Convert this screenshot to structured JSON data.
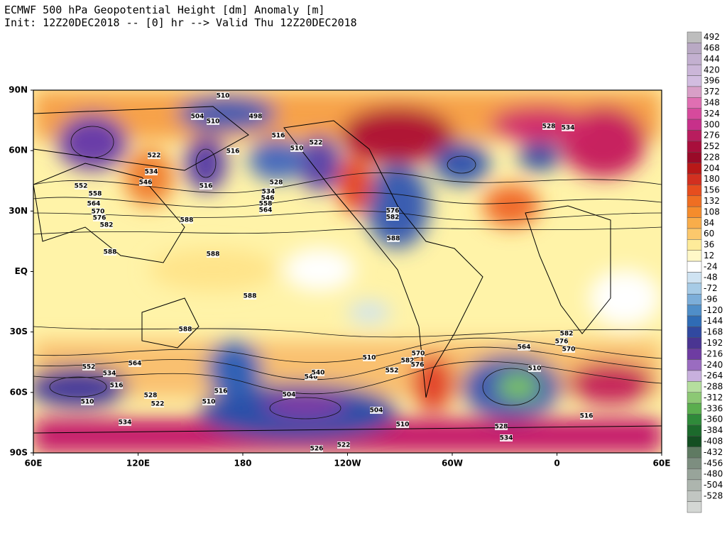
{
  "header": {
    "title": "ECMWF 500 hPa Geopotential Height [dm] Anomaly [m]",
    "subtitle": "Init: 12Z20DEC2018 -- [0] hr --> Valid Thu 12Z20DEC2018"
  },
  "map": {
    "lon_labels": [
      "60E",
      "120E",
      "180",
      "120W",
      "60W",
      "0",
      "60E"
    ],
    "lat_labels": [
      "90N",
      "60N",
      "30N",
      "EQ",
      "30S",
      "60S",
      "90S"
    ],
    "contour_labels": [
      510,
      504,
      498,
      510,
      516,
      516,
      522,
      534,
      546,
      552,
      558,
      564,
      570,
      576,
      582,
      588,
      588,
      588,
      588,
      588,
      510,
      522,
      528,
      516,
      534,
      546,
      558,
      564,
      576,
      582,
      588,
      582,
      576,
      570,
      564,
      552,
      534,
      516,
      510,
      528,
      522,
      504,
      510,
      516,
      504,
      510,
      534,
      526,
      522,
      528,
      534,
      516,
      510,
      564,
      552,
      510,
      546,
      540,
      534,
      528,
      582,
      576,
      570
    ],
    "legend": {
      "labels": [
        492,
        468,
        444,
        420,
        396,
        372,
        348,
        324,
        300,
        276,
        252,
        228,
        204,
        180,
        156,
        132,
        108,
        84,
        60,
        36,
        12,
        -24,
        -48,
        -72,
        -96,
        -120,
        -144,
        -168,
        -192,
        -216,
        -240,
        -264,
        -288,
        -312,
        -336,
        -360,
        -384,
        -408,
        -432,
        -456,
        -480,
        -504,
        -528
      ]
    }
  }
}
